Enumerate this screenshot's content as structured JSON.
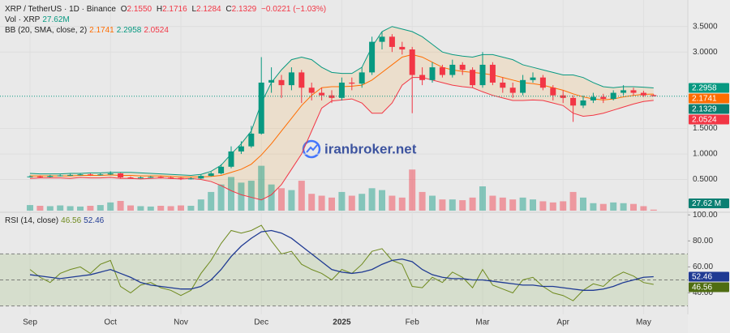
{
  "chart_data": [
    {
      "type": "candlestick",
      "header": {
        "title": "XRP / TetherUS · 1D · Binance",
        "ohlc_keys": [
          "O",
          "H",
          "L",
          "C"
        ],
        "ohlc_values": [
          "2.1550",
          "2.1716",
          "2.1284",
          "2.1329"
        ],
        "change": "−0.0221 (−1.03%)",
        "volume_title": "Vol · XRP",
        "volume_value": "27.62M",
        "bb_title": "BB (20, SMA, close, 2)",
        "bb_values": [
          "2.1741",
          "2.2958",
          "2.0524"
        ]
      },
      "watermark": "iranbroker.net",
      "categories": [
        "Sep",
        null,
        null,
        null,
        null,
        null,
        null,
        null,
        "Oct",
        null,
        null,
        null,
        null,
        null,
        null,
        "Nov",
        null,
        null,
        null,
        null,
        null,
        null,
        null,
        "Dec",
        null,
        null,
        null,
        null,
        null,
        null,
        null,
        "2025",
        null,
        null,
        null,
        null,
        null,
        null,
        "Feb",
        null,
        null,
        null,
        null,
        null,
        null,
        "Mar",
        null,
        null,
        null,
        null,
        null,
        null,
        null,
        "Apr",
        null,
        null,
        null,
        null,
        null,
        null,
        null,
        "May",
        null
      ],
      "open": [
        0.55,
        0.56,
        0.55,
        0.57,
        0.58,
        0.59,
        0.6,
        0.59,
        0.6,
        0.62,
        0.54,
        0.53,
        0.54,
        0.55,
        0.54,
        0.53,
        0.51,
        0.52,
        0.57,
        0.62,
        0.75,
        1.05,
        1.15,
        1.4,
        2.4,
        2.45,
        2.35,
        2.6,
        2.3,
        2.2,
        2.15,
        2.1,
        2.4,
        2.38,
        2.6,
        3.2,
        3.3,
        3.1,
        3.05,
        2.55,
        2.45,
        2.7,
        2.55,
        2.75,
        2.65,
        2.35,
        2.75,
        2.4,
        2.3,
        2.2,
        2.45,
        2.5,
        2.3,
        2.15,
        2.1,
        1.95,
        2.05,
        2.12,
        2.08,
        2.2,
        2.25,
        2.2,
        2.155
      ],
      "high": [
        0.58,
        0.58,
        0.59,
        0.6,
        0.61,
        0.62,
        0.62,
        0.62,
        0.66,
        0.63,
        0.56,
        0.56,
        0.57,
        0.57,
        0.56,
        0.55,
        0.54,
        0.6,
        0.65,
        0.8,
        1.15,
        1.25,
        1.55,
        2.9,
        2.7,
        2.55,
        2.7,
        2.65,
        2.4,
        2.3,
        2.25,
        2.5,
        2.5,
        2.7,
        3.3,
        3.4,
        3.35,
        3.2,
        3.1,
        2.7,
        2.8,
        2.75,
        2.85,
        2.8,
        2.7,
        3.0,
        2.8,
        2.5,
        2.4,
        2.55,
        2.6,
        2.55,
        2.35,
        2.25,
        2.15,
        2.15,
        2.2,
        2.18,
        2.25,
        2.35,
        2.3,
        2.24,
        2.1716
      ],
      "low": [
        0.54,
        0.53,
        0.54,
        0.56,
        0.57,
        0.58,
        0.57,
        0.58,
        0.59,
        0.52,
        0.51,
        0.52,
        0.53,
        0.52,
        0.51,
        0.49,
        0.5,
        0.51,
        0.56,
        0.6,
        0.72,
        1.0,
        1.12,
        1.38,
        2.2,
        2.1,
        2.25,
        2.0,
        2.05,
        2.05,
        2.0,
        2.05,
        2.25,
        2.3,
        2.55,
        3.05,
        3.0,
        2.95,
        1.8,
        2.35,
        2.4,
        2.5,
        2.5,
        2.55,
        2.3,
        2.3,
        2.35,
        2.2,
        2.1,
        2.15,
        2.4,
        2.25,
        2.05,
        2.0,
        1.63,
        1.9,
        2.0,
        2.0,
        2.05,
        2.15,
        2.15,
        2.12,
        2.1284
      ],
      "close": [
        0.56,
        0.55,
        0.57,
        0.58,
        0.59,
        0.6,
        0.59,
        0.6,
        0.62,
        0.54,
        0.53,
        0.54,
        0.55,
        0.54,
        0.53,
        0.51,
        0.52,
        0.57,
        0.62,
        0.75,
        1.05,
        1.15,
        1.4,
        2.4,
        2.45,
        2.35,
        2.6,
        2.3,
        2.2,
        2.15,
        2.1,
        2.4,
        2.38,
        2.6,
        3.2,
        3.3,
        3.1,
        3.05,
        2.55,
        2.45,
        2.7,
        2.55,
        2.75,
        2.65,
        2.35,
        2.75,
        2.4,
        2.3,
        2.2,
        2.45,
        2.5,
        2.3,
        2.15,
        2.1,
        1.95,
        2.05,
        2.12,
        2.08,
        2.2,
        2.25,
        2.2,
        2.15,
        2.1329
      ],
      "up_color": "#089981",
      "down_color": "#f23645",
      "bb_upper": {
        "color": "#089981",
        "values": [
          0.62,
          0.61,
          0.61,
          0.61,
          0.62,
          0.62,
          0.63,
          0.63,
          0.64,
          0.64,
          0.64,
          0.63,
          0.62,
          0.61,
          0.6,
          0.59,
          0.58,
          0.6,
          0.66,
          0.78,
          1.0,
          1.2,
          1.45,
          2.0,
          2.4,
          2.65,
          2.85,
          2.9,
          2.85,
          2.7,
          2.6,
          2.58,
          2.58,
          2.7,
          3.1,
          3.4,
          3.5,
          3.45,
          3.4,
          3.3,
          3.15,
          3.0,
          2.95,
          2.92,
          2.9,
          2.95,
          2.95,
          2.9,
          2.85,
          2.75,
          2.7,
          2.65,
          2.6,
          2.55,
          2.55,
          2.5,
          2.4,
          2.32,
          2.3,
          2.32,
          2.32,
          2.31,
          2.2958
        ]
      },
      "bb_basis": {
        "color": "#ff6d00",
        "values": [
          0.57,
          0.57,
          0.57,
          0.57,
          0.57,
          0.58,
          0.58,
          0.58,
          0.59,
          0.58,
          0.58,
          0.57,
          0.57,
          0.57,
          0.56,
          0.55,
          0.55,
          0.55,
          0.56,
          0.58,
          0.64,
          0.7,
          0.8,
          0.98,
          1.2,
          1.45,
          1.7,
          1.95,
          2.15,
          2.3,
          2.32,
          2.32,
          2.33,
          2.35,
          2.45,
          2.6,
          2.75,
          2.9,
          2.95,
          2.9,
          2.8,
          2.7,
          2.65,
          2.62,
          2.6,
          2.58,
          2.55,
          2.5,
          2.45,
          2.4,
          2.38,
          2.35,
          2.3,
          2.25,
          2.18,
          2.12,
          2.08,
          2.06,
          2.08,
          2.12,
          2.15,
          2.17,
          2.1741
        ]
      },
      "bb_lower": {
        "color": "#f23645",
        "values": [
          0.52,
          0.53,
          0.53,
          0.53,
          0.52,
          0.54,
          0.53,
          0.53,
          0.54,
          0.52,
          0.52,
          0.51,
          0.52,
          0.53,
          0.52,
          0.51,
          0.52,
          0.5,
          0.46,
          0.38,
          0.28,
          0.2,
          0.15,
          0.1,
          0.2,
          0.4,
          0.7,
          1.0,
          1.45,
          1.9,
          2.04,
          2.06,
          2.08,
          2.0,
          1.8,
          1.8,
          2.0,
          2.35,
          2.5,
          2.5,
          2.45,
          2.4,
          2.35,
          2.32,
          2.3,
          2.22,
          2.15,
          2.1,
          2.05,
          2.05,
          2.06,
          2.05,
          2.0,
          1.95,
          1.8,
          1.74,
          1.76,
          1.8,
          1.86,
          1.92,
          1.98,
          2.03,
          2.0524
        ]
      },
      "bb_fill": "rgba(255,152,0,0.12)",
      "volume": {
        "values": [
          150,
          130,
          120,
          140,
          120,
          110,
          130,
          150,
          220,
          260,
          140,
          120,
          110,
          130,
          120,
          140,
          130,
          300,
          500,
          700,
          900,
          750,
          800,
          1200,
          700,
          600,
          550,
          800,
          450,
          400,
          350,
          500,
          400,
          450,
          600,
          550,
          400,
          350,
          1100,
          500,
          400,
          300,
          300,
          280,
          350,
          650,
          400,
          350,
          300,
          350,
          300,
          250,
          220,
          250,
          500,
          350,
          200,
          180,
          220,
          200,
          180,
          120,
          27.62
        ],
        "badge": "27.62 M",
        "ylim": [
          0,
          1300
        ]
      },
      "ylim": [
        0,
        4.02
      ],
      "yticks": [
        {
          "value": 3.5,
          "label": "3.5000"
        },
        {
          "value": 3.0,
          "label": "3.0000"
        },
        {
          "value": 1.5,
          "label": "1.5000"
        },
        {
          "value": 1.0,
          "label": "1.0000"
        },
        {
          "value": 0.5,
          "label": "0.5000"
        }
      ],
      "grid": true
    },
    {
      "type": "line",
      "title": "RSI (14, close)",
      "title_values": [
        "46.56",
        "52.46"
      ],
      "series": [
        {
          "color": "#6f8a1e",
          "values": [
            58,
            52,
            48,
            55,
            58,
            60,
            55,
            62,
            65,
            45,
            40,
            46,
            48,
            44,
            42,
            38,
            42,
            55,
            65,
            78,
            88,
            86,
            88,
            92,
            80,
            70,
            72,
            62,
            58,
            55,
            50,
            58,
            55,
            62,
            72,
            74,
            65,
            62,
            45,
            44,
            52,
            48,
            56,
            52,
            44,
            58,
            46,
            43,
            40,
            50,
            52,
            45,
            40,
            38,
            34,
            42,
            47,
            45,
            52,
            56,
            53,
            48,
            46.56
          ]
        },
        {
          "color": "#1f3a93",
          "values": [
            54,
            53,
            52,
            51,
            52,
            53,
            54,
            56,
            58,
            55,
            52,
            48,
            46,
            45,
            44,
            43,
            43,
            45,
            50,
            58,
            68,
            76,
            82,
            87,
            88,
            86,
            82,
            76,
            70,
            64,
            58,
            56,
            55,
            56,
            58,
            62,
            65,
            66,
            64,
            58,
            54,
            52,
            51,
            51,
            50,
            50,
            49,
            48,
            47,
            46,
            46,
            45,
            45,
            44,
            43,
            42,
            42,
            43,
            45,
            48,
            50,
            52,
            52.46
          ]
        }
      ],
      "levels": [
        30,
        50,
        70
      ],
      "band_color": "rgba(120,170,60,0.16)",
      "ylim": [
        26,
        102
      ],
      "yticks": [
        {
          "value": 100,
          "label": "100.00"
        },
        {
          "value": 80,
          "label": "80.00"
        },
        {
          "value": 60,
          "label": "60.00"
        },
        {
          "value": 40,
          "label": "40.00"
        }
      ]
    }
  ]
}
